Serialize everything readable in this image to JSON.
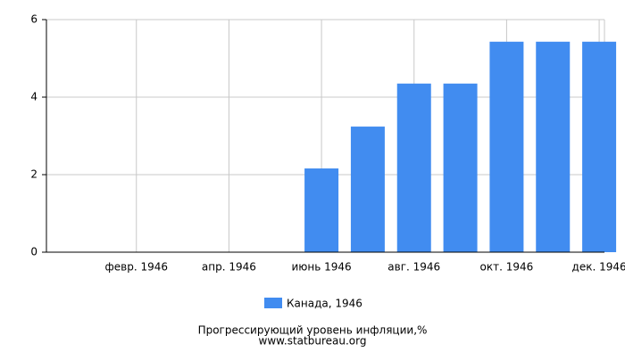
{
  "chart_data": {
    "type": "bar",
    "categories": [
      null,
      "февр. 1946",
      null,
      "апр. 1946",
      null,
      "июнь 1946",
      null,
      "авг. 1946",
      null,
      "окт. 1946",
      null,
      "дек. 1946"
    ],
    "series": [
      {
        "name": "Канада, 1946",
        "color": "#418cf0",
        "values": [
          0,
          0,
          0,
          0,
          0,
          2.16,
          3.24,
          4.35,
          4.35,
          5.43,
          5.43,
          5.43
        ]
      }
    ],
    "ylim": [
      0,
      6
    ],
    "yticks": [
      0,
      2,
      4,
      6
    ],
    "grid": true,
    "caption": "Прогрессирующий уровень инфляции,%",
    "source": "www.statbureau.org"
  }
}
